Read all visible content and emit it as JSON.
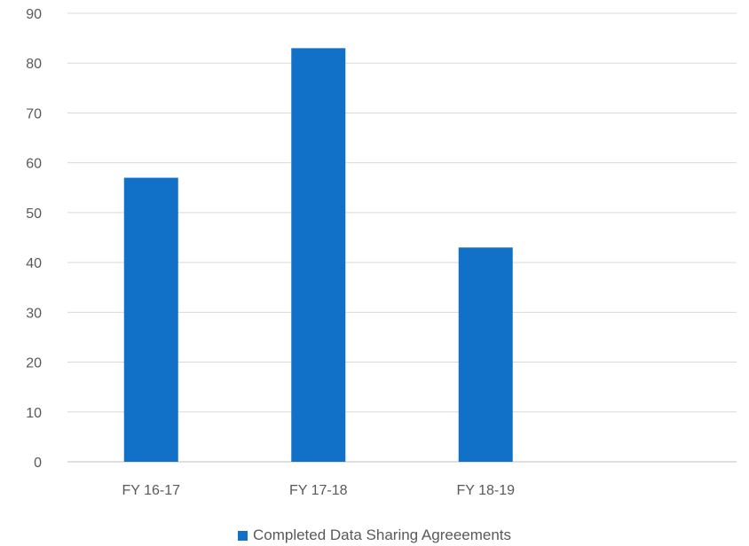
{
  "chart_data": {
    "type": "bar",
    "categories": [
      "FY 16-17",
      "FY 17-18",
      "FY 18-19",
      ""
    ],
    "series": [
      {
        "name": "Completed Data Sharing Agreeements",
        "values": [
          57,
          83,
          43,
          null
        ],
        "color": "#1170c8"
      }
    ],
    "ylim": [
      0,
      90
    ],
    "yticks": [
      0,
      10,
      20,
      30,
      40,
      50,
      60,
      70,
      80,
      90
    ],
    "grid": true,
    "legend_position": "bottom"
  },
  "legend": {
    "label": "Completed Data Sharing Agreeements"
  }
}
